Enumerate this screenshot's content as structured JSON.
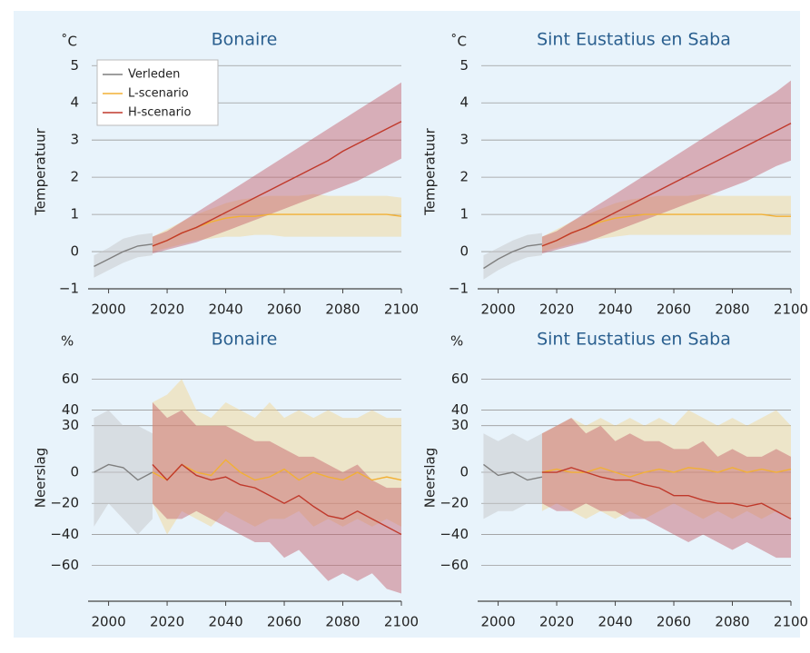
{
  "chart_data": [
    {
      "type": "line",
      "title": "Bonaire",
      "unit": "˚C",
      "y_label": "Temperatuur",
      "legend": "upper left",
      "grid": true,
      "x": [
        1995,
        2000,
        2005,
        2010,
        2015,
        2020,
        2025,
        2030,
        2035,
        2040,
        2045,
        2050,
        2055,
        2060,
        2065,
        2070,
        2075,
        2080,
        2085,
        2090,
        2095,
        2100
      ],
      "xlim": [
        1993,
        2100
      ],
      "xticks": [
        2000,
        2020,
        2040,
        2060,
        2080,
        2100
      ],
      "ylim": [
        -1,
        5.3
      ],
      "yticks": [
        {
          "value": -1,
          "label": "−1"
        },
        0,
        1,
        2,
        3,
        4,
        5
      ],
      "series": [
        {
          "name": "Verleden",
          "color": "#7f7f7f",
          "band_color": "#c4c4c4",
          "values": [
            -0.4,
            -0.2,
            0.0,
            0.15,
            0.2,
            null,
            null,
            null,
            null,
            null,
            null,
            null,
            null,
            null,
            null,
            null,
            null,
            null,
            null,
            null,
            null,
            null
          ],
          "lower": [
            -0.7,
            -0.5,
            -0.3,
            -0.15,
            -0.1,
            null,
            null,
            null,
            null,
            null,
            null,
            null,
            null,
            null,
            null,
            null,
            null,
            null,
            null,
            null,
            null,
            null
          ],
          "upper": [
            -0.1,
            0.1,
            0.35,
            0.45,
            0.5,
            null,
            null,
            null,
            null,
            null,
            null,
            null,
            null,
            null,
            null,
            null,
            null,
            null,
            null,
            null,
            null,
            null
          ]
        },
        {
          "name": "L-scenario",
          "color": "#f2b035",
          "band_color": "#f5d48c",
          "values": [
            null,
            null,
            null,
            null,
            0.15,
            0.3,
            0.5,
            0.65,
            0.8,
            0.9,
            0.95,
            0.95,
            1.0,
            1.0,
            1.0,
            1.0,
            1.0,
            1.0,
            1.0,
            1.0,
            1.0,
            0.95
          ],
          "lower": [
            null,
            null,
            null,
            null,
            0,
            0.1,
            0.2,
            0.3,
            0.35,
            0.4,
            0.4,
            0.45,
            0.45,
            0.4,
            0.4,
            0.4,
            0.4,
            0.4,
            0.4,
            0.4,
            0.4,
            0.4
          ],
          "upper": [
            null,
            null,
            null,
            null,
            0.4,
            0.6,
            0.8,
            1.0,
            1.15,
            1.3,
            1.4,
            1.45,
            1.5,
            1.5,
            1.5,
            1.55,
            1.5,
            1.5,
            1.5,
            1.5,
            1.5,
            1.45
          ]
        },
        {
          "name": "H-scenario",
          "color": "#c0392b",
          "band_color": "#c45a66",
          "values": [
            null,
            null,
            null,
            null,
            0.15,
            0.3,
            0.5,
            0.65,
            0.85,
            1.05,
            1.25,
            1.45,
            1.65,
            1.85,
            2.05,
            2.25,
            2.45,
            2.7,
            2.9,
            3.1,
            3.3,
            3.5
          ],
          "lower": [
            null,
            null,
            null,
            null,
            -0.05,
            0.05,
            0.15,
            0.25,
            0.4,
            0.55,
            0.7,
            0.85,
            1.0,
            1.15,
            1.3,
            1.45,
            1.6,
            1.75,
            1.9,
            2.1,
            2.3,
            2.5
          ],
          "upper": [
            null,
            null,
            null,
            null,
            0.4,
            0.55,
            0.8,
            1.05,
            1.3,
            1.55,
            1.8,
            2.05,
            2.3,
            2.55,
            2.8,
            3.05,
            3.3,
            3.55,
            3.8,
            4.05,
            4.3,
            4.55
          ]
        }
      ]
    },
    {
      "type": "line",
      "title": "Sint Eustatius en Saba",
      "unit": "˚C",
      "y_label": "Temperatuur",
      "grid": true,
      "x": [
        1995,
        2000,
        2005,
        2010,
        2015,
        2020,
        2025,
        2030,
        2035,
        2040,
        2045,
        2050,
        2055,
        2060,
        2065,
        2070,
        2075,
        2080,
        2085,
        2090,
        2095,
        2100
      ],
      "xlim": [
        1993,
        2100
      ],
      "xticks": [
        2000,
        2020,
        2040,
        2060,
        2080,
        2100
      ],
      "ylim": [
        -1,
        5.3
      ],
      "yticks": [
        {
          "value": -1,
          "label": "−1"
        },
        0,
        1,
        2,
        3,
        4,
        5
      ],
      "series": [
        {
          "color": "#7f7f7f",
          "band_color": "#c4c4c4",
          "values": [
            -0.45,
            -0.2,
            0.0,
            0.15,
            0.2,
            null,
            null,
            null,
            null,
            null,
            null,
            null,
            null,
            null,
            null,
            null,
            null,
            null,
            null,
            null,
            null,
            null
          ],
          "lower": [
            -0.75,
            -0.5,
            -0.3,
            -0.15,
            -0.1,
            null,
            null,
            null,
            null,
            null,
            null,
            null,
            null,
            null,
            null,
            null,
            null,
            null,
            null,
            null,
            null,
            null
          ],
          "upper": [
            -0.1,
            0.1,
            0.3,
            0.45,
            0.5,
            null,
            null,
            null,
            null,
            null,
            null,
            null,
            null,
            null,
            null,
            null,
            null,
            null,
            null,
            null,
            null,
            null
          ]
        },
        {
          "color": "#f2b035",
          "band_color": "#f5d48c",
          "values": [
            null,
            null,
            null,
            null,
            0.15,
            0.3,
            0.5,
            0.65,
            0.8,
            0.9,
            0.95,
            1.0,
            1.0,
            1.0,
            1.0,
            1.0,
            1.0,
            1.0,
            1.0,
            1.0,
            0.95,
            0.95
          ],
          "lower": [
            null,
            null,
            null,
            null,
            0,
            0.1,
            0.2,
            0.3,
            0.35,
            0.4,
            0.45,
            0.45,
            0.45,
            0.45,
            0.45,
            0.45,
            0.45,
            0.45,
            0.45,
            0.45,
            0.45,
            0.45
          ],
          "upper": [
            null,
            null,
            null,
            null,
            0.4,
            0.6,
            0.8,
            1.0,
            1.15,
            1.3,
            1.4,
            1.45,
            1.5,
            1.5,
            1.5,
            1.55,
            1.5,
            1.5,
            1.5,
            1.5,
            1.5,
            1.5
          ]
        },
        {
          "color": "#c0392b",
          "band_color": "#c45a66",
          "values": [
            null,
            null,
            null,
            null,
            0.15,
            0.3,
            0.5,
            0.65,
            0.85,
            1.05,
            1.25,
            1.45,
            1.65,
            1.85,
            2.05,
            2.25,
            2.45,
            2.65,
            2.85,
            3.05,
            3.25,
            3.45
          ],
          "lower": [
            null,
            null,
            null,
            null,
            -0.05,
            0.05,
            0.15,
            0.25,
            0.4,
            0.55,
            0.7,
            0.85,
            1.0,
            1.15,
            1.3,
            1.45,
            1.6,
            1.75,
            1.9,
            2.1,
            2.3,
            2.45
          ],
          "upper": [
            null,
            null,
            null,
            null,
            0.4,
            0.55,
            0.8,
            1.05,
            1.3,
            1.55,
            1.8,
            2.05,
            2.3,
            2.55,
            2.8,
            3.05,
            3.3,
            3.55,
            3.8,
            4.05,
            4.3,
            4.6
          ]
        }
      ]
    },
    {
      "type": "line",
      "title": "Bonaire",
      "unit": "%",
      "y_label": "Neerslag",
      "grid": true,
      "x": [
        1995,
        2000,
        2005,
        2010,
        2015,
        2020,
        2025,
        2030,
        2035,
        2040,
        2045,
        2050,
        2055,
        2060,
        2065,
        2070,
        2075,
        2080,
        2085,
        2090,
        2095,
        2100
      ],
      "xlim": [
        1993,
        2100
      ],
      "xticks": [
        2000,
        2020,
        2040,
        2060,
        2080,
        2100
      ],
      "ylim": [
        -83,
        76
      ],
      "yticks": [
        {
          "value": -60,
          "label": "−60"
        },
        {
          "value": -40,
          "label": "−40"
        },
        {
          "value": -20,
          "label": "−20"
        },
        0,
        30,
        40,
        60
      ],
      "series": [
        {
          "color": "#7f7f7f",
          "band_color": "#c4c4c4",
          "values": [
            0,
            5,
            3,
            -5,
            0,
            null,
            null,
            null,
            null,
            null,
            null,
            null,
            null,
            null,
            null,
            null,
            null,
            null,
            null,
            null,
            null,
            null
          ],
          "lower": [
            -35,
            -20,
            -30,
            -40,
            -30,
            null,
            null,
            null,
            null,
            null,
            null,
            null,
            null,
            null,
            null,
            null,
            null,
            null,
            null,
            null,
            null,
            null
          ],
          "upper": [
            35,
            40,
            30,
            30,
            25,
            null,
            null,
            null,
            null,
            null,
            null,
            null,
            null,
            null,
            null,
            null,
            null,
            null,
            null,
            null,
            null,
            null
          ]
        },
        {
          "color": "#f2b035",
          "band_color": "#f5d48c",
          "values": [
            null,
            null,
            null,
            null,
            0,
            -5,
            5,
            0,
            -2,
            8,
            0,
            -5,
            -3,
            2,
            -5,
            0,
            -3,
            -5,
            0,
            -5,
            -3,
            -5
          ],
          "lower": [
            null,
            null,
            null,
            null,
            -20,
            -40,
            -25,
            -30,
            -35,
            -25,
            -30,
            -35,
            -30,
            -30,
            -25,
            -35,
            -30,
            -35,
            -30,
            -35,
            -30,
            -35
          ],
          "upper": [
            null,
            null,
            null,
            null,
            45,
            50,
            60,
            40,
            35,
            45,
            40,
            35,
            45,
            35,
            40,
            35,
            40,
            35,
            35,
            40,
            35,
            35
          ]
        },
        {
          "color": "#c0392b",
          "band_color": "#c45a66",
          "values": [
            null,
            null,
            null,
            null,
            5,
            -5,
            5,
            -2,
            -5,
            -3,
            -8,
            -10,
            -15,
            -20,
            -15,
            -22,
            -28,
            -30,
            -25,
            -30,
            -35,
            -40
          ],
          "lower": [
            null,
            null,
            null,
            null,
            -20,
            -30,
            -30,
            -25,
            -30,
            -35,
            -40,
            -45,
            -45,
            -55,
            -50,
            -60,
            -70,
            -65,
            -70,
            -65,
            -75,
            -78
          ],
          "upper": [
            null,
            null,
            null,
            null,
            45,
            35,
            40,
            30,
            30,
            30,
            25,
            20,
            20,
            15,
            10,
            10,
            5,
            0,
            5,
            -5,
            -10,
            -10
          ]
        }
      ]
    },
    {
      "type": "line",
      "title": "Sint Eustatius en Saba",
      "unit": "%",
      "y_label": "Neerslag",
      "grid": true,
      "x": [
        1995,
        2000,
        2005,
        2010,
        2015,
        2020,
        2025,
        2030,
        2035,
        2040,
        2045,
        2050,
        2055,
        2060,
        2065,
        2070,
        2075,
        2080,
        2085,
        2090,
        2095,
        2100
      ],
      "xlim": [
        1993,
        2100
      ],
      "xticks": [
        2000,
        2020,
        2040,
        2060,
        2080,
        2100
      ],
      "ylim": [
        -83,
        76
      ],
      "yticks": [
        {
          "value": -60,
          "label": "−60"
        },
        {
          "value": -40,
          "label": "−40"
        },
        {
          "value": -20,
          "label": "−20"
        },
        0,
        30,
        40,
        60
      ],
      "series": [
        {
          "color": "#7f7f7f",
          "band_color": "#c4c4c4",
          "values": [
            5,
            -2,
            0,
            -5,
            -3,
            null,
            null,
            null,
            null,
            null,
            null,
            null,
            null,
            null,
            null,
            null,
            null,
            null,
            null,
            null,
            null,
            null
          ],
          "lower": [
            -30,
            -25,
            -25,
            -20,
            -20,
            null,
            null,
            null,
            null,
            null,
            null,
            null,
            null,
            null,
            null,
            null,
            null,
            null,
            null,
            null,
            null,
            null
          ],
          "upper": [
            25,
            20,
            25,
            20,
            25,
            null,
            null,
            null,
            null,
            null,
            null,
            null,
            null,
            null,
            null,
            null,
            null,
            null,
            null,
            null,
            null,
            null
          ]
        },
        {
          "color": "#f2b035",
          "band_color": "#f5d48c",
          "values": [
            null,
            null,
            null,
            null,
            0,
            2,
            0,
            0,
            3,
            0,
            -3,
            0,
            2,
            0,
            3,
            2,
            0,
            3,
            0,
            2,
            0,
            2
          ],
          "lower": [
            null,
            null,
            null,
            null,
            -25,
            -20,
            -25,
            -30,
            -25,
            -30,
            -25,
            -30,
            -25,
            -20,
            -25,
            -30,
            -25,
            -30,
            -25,
            -30,
            -25,
            -30
          ],
          "upper": [
            null,
            null,
            null,
            null,
            25,
            30,
            35,
            30,
            35,
            30,
            35,
            30,
            35,
            30,
            40,
            35,
            30,
            35,
            30,
            35,
            40,
            30
          ]
        },
        {
          "color": "#c0392b",
          "band_color": "#c45a66",
          "values": [
            null,
            null,
            null,
            null,
            0,
            0,
            3,
            0,
            -3,
            -5,
            -5,
            -8,
            -10,
            -15,
            -15,
            -18,
            -20,
            -20,
            -22,
            -20,
            -25,
            -30
          ],
          "lower": [
            null,
            null,
            null,
            null,
            -20,
            -25,
            -25,
            -20,
            -25,
            -25,
            -30,
            -30,
            -35,
            -40,
            -45,
            -40,
            -45,
            -50,
            -45,
            -50,
            -55,
            -55
          ],
          "upper": [
            null,
            null,
            null,
            null,
            25,
            30,
            35,
            25,
            30,
            20,
            25,
            20,
            20,
            15,
            15,
            20,
            10,
            15,
            10,
            10,
            15,
            10
          ]
        }
      ]
    }
  ]
}
